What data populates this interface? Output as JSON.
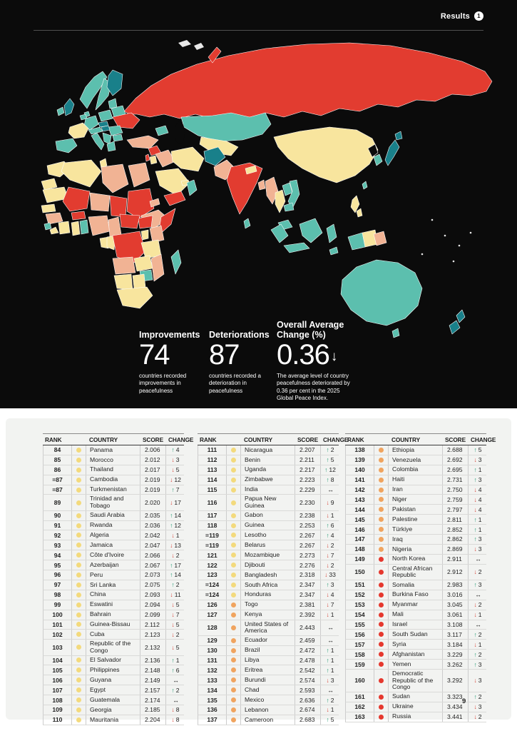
{
  "header": {
    "results_label": "Results",
    "results_badge": "1"
  },
  "footer": {
    "page_number": "9"
  },
  "colors": {
    "map_red": "#e23c30",
    "map_yellow": "#f8e59e",
    "map_salmon": "#f1b394",
    "map_teal": "#5cbfae",
    "map_dark_teal": "#19808a",
    "dot_yellow": "#f3da7d",
    "dot_orange": "#f0a45f",
    "dot_red": "#e5382e",
    "arrow_up": "#1f9a70",
    "arrow_down": "#d63a2f",
    "arrow_same": "#1c1c1c"
  },
  "map_stats": [
    {
      "label": "Improvements",
      "value": "74",
      "arrow": "",
      "caption": "countries recorded improvements in peacefulness"
    },
    {
      "label": "Deteriorations",
      "value": "87",
      "arrow": "",
      "caption": "countries recorded a deterioration in peacefulness"
    },
    {
      "label": "Overall Average Change (%)",
      "value": "0.36",
      "arrow": "↓",
      "caption": "The average level of country peacefulness deteriorated by 0.36 per cent in the 2025 Global Peace Index."
    }
  ],
  "tables": {
    "headers": [
      "RANK",
      "COUNTRY",
      "SCORE",
      "CHANGE"
    ],
    "columns": [
      {
        "rows": [
          {
            "rank": "84",
            "dot": "yellow",
            "country": "Panama",
            "score": "2.006",
            "dir": "up",
            "change": "4"
          },
          {
            "rank": "85",
            "dot": "yellow",
            "country": "Morocco",
            "score": "2.012",
            "dir": "down",
            "change": "3"
          },
          {
            "rank": "86",
            "dot": "yellow",
            "country": "Thailand",
            "score": "2.017",
            "dir": "down",
            "change": "5"
          },
          {
            "rank": "=87",
            "dot": "yellow",
            "country": "Cambodia",
            "score": "2.019",
            "dir": "down",
            "change": "12"
          },
          {
            "rank": "=87",
            "dot": "yellow",
            "country": "Turkmenistan",
            "score": "2.019",
            "dir": "up",
            "change": "7"
          },
          {
            "rank": "89",
            "dot": "yellow",
            "country": "Trinidad and Tobago",
            "score": "2.020",
            "dir": "down",
            "change": "17"
          },
          {
            "rank": "90",
            "dot": "yellow",
            "country": "Saudi Arabia",
            "score": "2.035",
            "dir": "up",
            "change": "14"
          },
          {
            "rank": "91",
            "dot": "yellow",
            "country": "Rwanda",
            "score": "2.036",
            "dir": "up",
            "change": "12"
          },
          {
            "rank": "92",
            "dot": "yellow",
            "country": "Algeria",
            "score": "2.042",
            "dir": "down",
            "change": "1"
          },
          {
            "rank": "93",
            "dot": "yellow",
            "country": "Jamaica",
            "score": "2.047",
            "dir": "down",
            "change": "13"
          },
          {
            "rank": "94",
            "dot": "yellow",
            "country": "Côte d'Ivoire",
            "score": "2.066",
            "dir": "down",
            "change": "2"
          },
          {
            "rank": "95",
            "dot": "yellow",
            "country": "Azerbaijan",
            "score": "2.067",
            "dir": "up",
            "change": "17"
          },
          {
            "rank": "96",
            "dot": "yellow",
            "country": "Peru",
            "score": "2.073",
            "dir": "up",
            "change": "14"
          },
          {
            "rank": "97",
            "dot": "yellow",
            "country": "Sri Lanka",
            "score": "2.075",
            "dir": "up",
            "change": "2"
          },
          {
            "rank": "98",
            "dot": "yellow",
            "country": "China",
            "score": "2.093",
            "dir": "down",
            "change": "11"
          },
          {
            "rank": "99",
            "dot": "yellow",
            "country": "Eswatini",
            "score": "2.094",
            "dir": "down",
            "change": "5"
          },
          {
            "rank": "100",
            "dot": "yellow",
            "country": "Bahrain",
            "score": "2.099",
            "dir": "down",
            "change": "7"
          },
          {
            "rank": "101",
            "dot": "yellow",
            "country": "Guinea-Bissau",
            "score": "2.112",
            "dir": "down",
            "change": "5"
          },
          {
            "rank": "102",
            "dot": "yellow",
            "country": "Cuba",
            "score": "2.123",
            "dir": "down",
            "change": "2"
          },
          {
            "rank": "103",
            "dot": "yellow",
            "country": "Republic of the Congo",
            "score": "2.132",
            "dir": "down",
            "change": "5"
          },
          {
            "rank": "104",
            "dot": "yellow",
            "country": "El Salvador",
            "score": "2.136",
            "dir": "up",
            "change": "1"
          },
          {
            "rank": "105",
            "dot": "yellow",
            "country": "Philippines",
            "score": "2.148",
            "dir": "up",
            "change": "6"
          },
          {
            "rank": "106",
            "dot": "yellow",
            "country": "Guyana",
            "score": "2.149",
            "dir": "same",
            "change": ""
          },
          {
            "rank": "107",
            "dot": "yellow",
            "country": "Egypt",
            "score": "2.157",
            "dir": "up",
            "change": "2"
          },
          {
            "rank": "108",
            "dot": "yellow",
            "country": "Guatemala",
            "score": "2.174",
            "dir": "same",
            "change": ""
          },
          {
            "rank": "109",
            "dot": "yellow",
            "country": "Georgia",
            "score": "2.185",
            "dir": "down",
            "change": "8"
          },
          {
            "rank": "110",
            "dot": "yellow",
            "country": "Mauritania",
            "score": "2.204",
            "dir": "down",
            "change": "8"
          }
        ]
      },
      {
        "rows": [
          {
            "rank": "111",
            "dot": "yellow",
            "country": "Nicaragua",
            "score": "2.207",
            "dir": "up",
            "change": "2"
          },
          {
            "rank": "112",
            "dot": "yellow",
            "country": "Benin",
            "score": "2.211",
            "dir": "up",
            "change": "5"
          },
          {
            "rank": "113",
            "dot": "yellow",
            "country": "Uganda",
            "score": "2.217",
            "dir": "up",
            "change": "12"
          },
          {
            "rank": "114",
            "dot": "yellow",
            "country": "Zimbabwe",
            "score": "2.223",
            "dir": "up",
            "change": "8"
          },
          {
            "rank": "115",
            "dot": "yellow",
            "country": "India",
            "score": "2.229",
            "dir": "same",
            "change": ""
          },
          {
            "rank": "116",
            "dot": "yellow",
            "country": "Papua New Guinea",
            "score": "2.230",
            "dir": "down",
            "change": "9"
          },
          {
            "rank": "117",
            "dot": "yellow",
            "country": "Gabon",
            "score": "2.238",
            "dir": "down",
            "change": "1"
          },
          {
            "rank": "118",
            "dot": "yellow",
            "country": "Guinea",
            "score": "2.253",
            "dir": "up",
            "change": "6"
          },
          {
            "rank": "=119",
            "dot": "yellow",
            "country": "Lesotho",
            "score": "2.267",
            "dir": "up",
            "change": "4"
          },
          {
            "rank": "=119",
            "dot": "yellow",
            "country": "Belarus",
            "score": "2.267",
            "dir": "down",
            "change": "2"
          },
          {
            "rank": "121",
            "dot": "yellow",
            "country": "Mozambique",
            "score": "2.273",
            "dir": "down",
            "change": "7"
          },
          {
            "rank": "122",
            "dot": "yellow",
            "country": "Djibouti",
            "score": "2.276",
            "dir": "down",
            "change": "2"
          },
          {
            "rank": "123",
            "dot": "yellow",
            "country": "Bangladesh",
            "score": "2.318",
            "dir": "down",
            "change": "33"
          },
          {
            "rank": "=124",
            "dot": "yellow",
            "country": "South Africa",
            "score": "2.347",
            "dir": "up",
            "change": "3"
          },
          {
            "rank": "=124",
            "dot": "yellow",
            "country": "Honduras",
            "score": "2.347",
            "dir": "down",
            "change": "4"
          },
          {
            "rank": "126",
            "dot": "orange",
            "country": "Togo",
            "score": "2.381",
            "dir": "down",
            "change": "7"
          },
          {
            "rank": "127",
            "dot": "orange",
            "country": "Kenya",
            "score": "2.392",
            "dir": "down",
            "change": "1"
          },
          {
            "rank": "128",
            "dot": "orange",
            "country": "United States of America",
            "score": "2.443",
            "dir": "same",
            "change": ""
          },
          {
            "rank": "129",
            "dot": "orange",
            "country": "Ecuador",
            "score": "2.459",
            "dir": "same",
            "change": ""
          },
          {
            "rank": "130",
            "dot": "orange",
            "country": "Brazil",
            "score": "2.472",
            "dir": "up",
            "change": "1"
          },
          {
            "rank": "131",
            "dot": "orange",
            "country": "Libya",
            "score": "2.478",
            "dir": "up",
            "change": "1"
          },
          {
            "rank": "132",
            "dot": "orange",
            "country": "Eritrea",
            "score": "2.542",
            "dir": "up",
            "change": "1"
          },
          {
            "rank": "133",
            "dot": "orange",
            "country": "Burundi",
            "score": "2.574",
            "dir": "down",
            "change": "3"
          },
          {
            "rank": "134",
            "dot": "orange",
            "country": "Chad",
            "score": "2.593",
            "dir": "same",
            "change": ""
          },
          {
            "rank": "135",
            "dot": "orange",
            "country": "Mexico",
            "score": "2.636",
            "dir": "up",
            "change": "2"
          },
          {
            "rank": "136",
            "dot": "orange",
            "country": "Lebanon",
            "score": "2.674",
            "dir": "down",
            "change": "1"
          },
          {
            "rank": "137",
            "dot": "orange",
            "country": "Cameroon",
            "score": "2.683",
            "dir": "up",
            "change": "5"
          }
        ]
      },
      {
        "rows": [
          {
            "rank": "138",
            "dot": "orange",
            "country": "Ethiopia",
            "score": "2.688",
            "dir": "up",
            "change": "5"
          },
          {
            "rank": "139",
            "dot": "orange",
            "country": "Venezuela",
            "score": "2.692",
            "dir": "down",
            "change": "3"
          },
          {
            "rank": "140",
            "dot": "orange",
            "country": "Colombia",
            "score": "2.695",
            "dir": "up",
            "change": "1"
          },
          {
            "rank": "141",
            "dot": "orange",
            "country": "Haiti",
            "score": "2.731",
            "dir": "up",
            "change": "3"
          },
          {
            "rank": "142",
            "dot": "orange",
            "country": "Iran",
            "score": "2.750",
            "dir": "down",
            "change": "4"
          },
          {
            "rank": "143",
            "dot": "orange",
            "country": "Niger",
            "score": "2.759",
            "dir": "down",
            "change": "4"
          },
          {
            "rank": "144",
            "dot": "orange",
            "country": "Pakistan",
            "score": "2.797",
            "dir": "down",
            "change": "4"
          },
          {
            "rank": "145",
            "dot": "orange",
            "country": "Palestine",
            "score": "2.811",
            "dir": "up",
            "change": "1"
          },
          {
            "rank": "146",
            "dot": "orange",
            "country": "Türkiye",
            "score": "2.852",
            "dir": "up",
            "change": "1"
          },
          {
            "rank": "147",
            "dot": "orange",
            "country": "Iraq",
            "score": "2.862",
            "dir": "up",
            "change": "3"
          },
          {
            "rank": "148",
            "dot": "orange",
            "country": "Nigeria",
            "score": "2.869",
            "dir": "down",
            "change": "3"
          },
          {
            "rank": "149",
            "dot": "red",
            "country": "North Korea",
            "score": "2.911",
            "dir": "same",
            "change": ""
          },
          {
            "rank": "150",
            "dot": "red",
            "country": "Central African Republic",
            "score": "2.912",
            "dir": "down",
            "change": "2"
          },
          {
            "rank": "151",
            "dot": "red",
            "country": "Somalia",
            "score": "2.983",
            "dir": "up",
            "change": "3"
          },
          {
            "rank": "152",
            "dot": "red",
            "country": "Burkina Faso",
            "score": "3.016",
            "dir": "same",
            "change": ""
          },
          {
            "rank": "153",
            "dot": "red",
            "country": "Myanmar",
            "score": "3.045",
            "dir": "down",
            "change": "2"
          },
          {
            "rank": "154",
            "dot": "red",
            "country": "Mali",
            "score": "3.061",
            "dir": "down",
            "change": "1"
          },
          {
            "rank": "155",
            "dot": "red",
            "country": "Israel",
            "score": "3.108",
            "dir": "same",
            "change": ""
          },
          {
            "rank": "156",
            "dot": "red",
            "country": "South Sudan",
            "score": "3.117",
            "dir": "up",
            "change": "2"
          },
          {
            "rank": "157",
            "dot": "red",
            "country": "Syria",
            "score": "3.184",
            "dir": "down",
            "change": "1"
          },
          {
            "rank": "158",
            "dot": "red",
            "country": "Afghanistan",
            "score": "3.229",
            "dir": "up",
            "change": "2"
          },
          {
            "rank": "159",
            "dot": "red",
            "country": "Yemen",
            "score": "3.262",
            "dir": "up",
            "change": "3"
          },
          {
            "rank": "160",
            "dot": "red",
            "country": "Democratic Republic of the Congo",
            "score": "3.292",
            "dir": "down",
            "change": "3"
          },
          {
            "rank": "161",
            "dot": "red",
            "country": "Sudan",
            "score": "3.323",
            "dir": "up",
            "change": "2"
          },
          {
            "rank": "162",
            "dot": "red",
            "country": "Ukraine",
            "score": "3.434",
            "dir": "down",
            "change": "3"
          },
          {
            "rank": "163",
            "dot": "red",
            "country": "Russia",
            "score": "3.441",
            "dir": "down",
            "change": "2"
          }
        ]
      }
    ]
  }
}
